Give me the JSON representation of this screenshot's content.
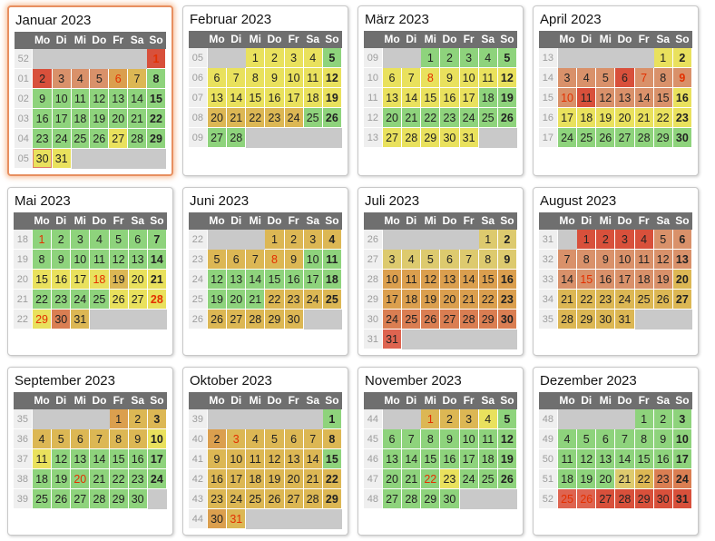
{
  "page": {
    "background": "#ffffff",
    "year": "2023",
    "language": "de"
  },
  "day_headers": [
    "Mo",
    "Di",
    "Mi",
    "Do",
    "Fr",
    "Sa",
    "So"
  ],
  "palette": {
    "g": "#8ed37c",
    "y": "#e9e15d",
    "k": "#ddca6e",
    "t": "#dcb754",
    "o": "#db9f4e",
    "s": "#d9916a",
    "S": "#da7e52",
    "R": "#de6450",
    "r": "#d8503b",
    "empty_cell": "#c9c9c9",
    "holiday_text": "#e33000",
    "day_text": "#222222",
    "header_bg": "#6f6f6f",
    "header_text": "#ffffff",
    "week_bg": "#efefef",
    "week_text": "#9d9d9d",
    "today_border": "#dd7a66",
    "current_month_border": "#e78f60"
  },
  "months": [
    {
      "id": "januar",
      "name": "Januar 2023",
      "current": true,
      "today": 30,
      "weeks": [
        "52",
        "01",
        "02",
        "03",
        "04",
        "05"
      ],
      "start": 6,
      "days": 31,
      "colors": "rrsssotgggggggggggggggggggyggyy",
      "holidays": [
        1,
        6
      ]
    },
    {
      "id": "februar",
      "name": "Februar 2023",
      "weeks": [
        "05",
        "06",
        "07",
        "08",
        "09"
      ],
      "start": 2,
      "days": 28,
      "colors": "yyyygyyyyyyyyyyyyyytttttgggg",
      "holidays": []
    },
    {
      "id": "maerz",
      "name": "März 2023",
      "weeks": [
        "09",
        "10",
        "11",
        "12",
        "13"
      ],
      "start": 2,
      "days": 31,
      "colors": "gggggyyyyyyyyyyyygggggggggyyyyy",
      "holidays": [
        8
      ]
    },
    {
      "id": "april",
      "name": "April 2023",
      "weeks": [
        "13",
        "14",
        "15",
        "16",
        "17"
      ],
      "start": 5,
      "days": 30,
      "colors": "yysssrssssrssssyyyyyyyyggggggg",
      "holidays": [
        7,
        9,
        10
      ]
    },
    {
      "id": "mai",
      "name": "Mai 2023",
      "weeks": [
        "18",
        "19",
        "20",
        "21",
        "22"
      ],
      "start": 0,
      "days": 31,
      "colors": "ggggggggggggggyyyytyyggggyyyySt",
      "holidays": [
        1,
        18,
        28,
        29
      ]
    },
    {
      "id": "juni",
      "name": "Juni 2023",
      "weeks": [
        "22",
        "23",
        "24",
        "25",
        "26"
      ],
      "start": 3,
      "days": 30,
      "colors": "tttttttttggggggggggggttttttttt",
      "holidays": [
        8
      ]
    },
    {
      "id": "juli",
      "name": "Juli 2023",
      "weeks": [
        "26",
        "27",
        "28",
        "29",
        "30",
        "31"
      ],
      "start": 5,
      "days": 31,
      "colors": "kkkkkkkkkooooooooooooooSSSSSSSR",
      "holidays": []
    },
    {
      "id": "august",
      "name": "August 2023",
      "weeks": [
        "31",
        "32",
        "33",
        "34",
        "35"
      ],
      "start": 1,
      "days": 31,
      "colors": "rrrrssssssssssssssstttttttttttt",
      "holidays": [
        15
      ]
    },
    {
      "id": "september",
      "name": "September 2023",
      "weeks": [
        "35",
        "36",
        "37",
        "38",
        "39"
      ],
      "start": 4,
      "days": 30,
      "colors": "ottttttttyyggggggggggggggggggg",
      "holidays": [
        20
      ]
    },
    {
      "id": "oktober",
      "name": "Oktober 2023",
      "weeks": [
        "39",
        "40",
        "41",
        "42",
        "43",
        "44"
      ],
      "start": 6,
      "days": 31,
      "colors": "gottttttttttttgttttttttttttttot",
      "holidays": [
        3,
        31
      ]
    },
    {
      "id": "november",
      "name": "November 2023",
      "weeks": [
        "44",
        "45",
        "46",
        "47",
        "48"
      ],
      "start": 2,
      "days": 30,
      "colors": "tttyggggggggggggggggggygggggggg",
      "holidays": [
        1,
        22
      ]
    },
    {
      "id": "dezember",
      "name": "Dezember 2023",
      "weeks": [
        "48",
        "49",
        "50",
        "51",
        "52"
      ],
      "start": 4,
      "days": 31,
      "colors": "ggggggggggggggggggggktSSRRrrrrr",
      "holidays": [
        25,
        26
      ]
    }
  ]
}
